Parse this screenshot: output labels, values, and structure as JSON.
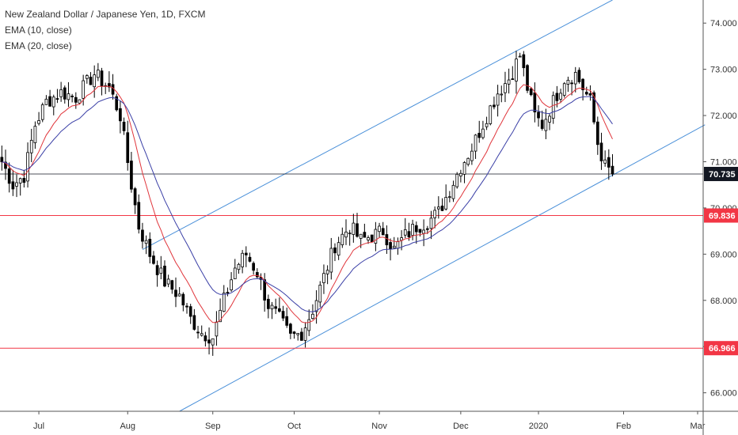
{
  "legend": {
    "title": "New Zealand Dollar / Japanese Yen, 1D, FXCM",
    "ema10": "EMA (10, close)",
    "ema20": "EMA (20, close)"
  },
  "chart_data": {
    "type": "candlestick",
    "ylim": [
      65.6,
      74.5
    ],
    "y_ticks": [
      {
        "value": 66.0,
        "label": "66.000"
      },
      {
        "value": 67.0,
        "label": "67.000"
      },
      {
        "value": 68.0,
        "label": "68.000"
      },
      {
        "value": 69.0,
        "label": "69.000"
      },
      {
        "value": 70.0,
        "label": "70.000"
      },
      {
        "value": 71.0,
        "label": "71.000"
      },
      {
        "value": 72.0,
        "label": "72.000"
      },
      {
        "value": 73.0,
        "label": "73.000"
      },
      {
        "value": 74.0,
        "label": "74.000"
      }
    ],
    "x_ticks": [
      {
        "bar": 10,
        "label": "Jul"
      },
      {
        "bar": 34,
        "label": "Aug"
      },
      {
        "bar": 57,
        "label": "Sep"
      },
      {
        "bar": 79,
        "label": "Oct"
      },
      {
        "bar": 102,
        "label": "Nov"
      },
      {
        "bar": 124,
        "label": "Dec"
      },
      {
        "bar": 145,
        "label": "2020"
      },
      {
        "bar": 168,
        "label": "Feb"
      },
      {
        "bar": 188,
        "label": "Mar"
      }
    ],
    "bar_count": 190,
    "waypoints": [
      [
        0,
        71.0
      ],
      [
        3,
        70.5
      ],
      [
        6,
        70.7
      ],
      [
        9,
        71.8
      ],
      [
        12,
        72.3
      ],
      [
        16,
        72.5
      ],
      [
        20,
        72.4
      ],
      [
        25,
        72.9
      ],
      [
        29,
        72.6
      ],
      [
        32,
        72.0
      ],
      [
        35,
        70.5
      ],
      [
        37,
        69.6
      ],
      [
        40,
        69.0
      ],
      [
        44,
        68.4
      ],
      [
        48,
        68.1
      ],
      [
        51,
        67.6
      ],
      [
        54,
        67.3
      ],
      [
        57,
        67.2
      ],
      [
        60,
        68.0
      ],
      [
        63,
        68.7
      ],
      [
        66,
        69.0
      ],
      [
        69,
        68.6
      ],
      [
        72,
        67.9
      ],
      [
        75,
        67.6
      ],
      [
        78,
        67.2
      ],
      [
        81,
        67.3
      ],
      [
        84,
        67.8
      ],
      [
        87,
        68.5
      ],
      [
        90,
        69.2
      ],
      [
        94,
        69.6
      ],
      [
        97,
        69.3
      ],
      [
        100,
        69.4
      ],
      [
        103,
        69.5
      ],
      [
        106,
        69.1
      ],
      [
        109,
        69.4
      ],
      [
        112,
        69.6
      ],
      [
        115,
        69.7
      ],
      [
        118,
        69.9
      ],
      [
        121,
        70.4
      ],
      [
        124,
        70.9
      ],
      [
        127,
        71.3
      ],
      [
        131,
        72.0
      ],
      [
        134,
        72.5
      ],
      [
        137,
        72.8
      ],
      [
        140,
        73.3
      ],
      [
        142,
        72.6
      ],
      [
        144,
        72.0
      ],
      [
        146,
        71.8
      ],
      [
        149,
        72.3
      ],
      [
        152,
        72.8
      ],
      [
        155,
        72.9
      ],
      [
        157,
        72.6
      ],
      [
        159,
        72.3
      ],
      [
        161,
        71.4
      ],
      [
        163,
        70.9
      ],
      [
        165,
        70.75
      ]
    ],
    "last_close": 70.735,
    "channel": {
      "upper": {
        "from": [
          38,
          69.1
        ],
        "to": [
          165,
          74.5
        ]
      },
      "lower": {
        "from": [
          48,
          65.6
        ],
        "to": [
          190,
          71.8
        ]
      }
    },
    "hlines": [
      {
        "value": 69.836,
        "label": "69.836",
        "color": "#f23645"
      },
      {
        "value": 66.966,
        "label": "66.966",
        "color": "#f23645"
      }
    ],
    "price_line": {
      "value": 70.735,
      "label": "70.735",
      "color": "#131722"
    },
    "colors": {
      "up_candle": "#ffffff",
      "down_candle": "#000000",
      "wick": "#000000",
      "ema10": "#e0353b",
      "ema20": "#3a3fa6",
      "channel": "#4a90d9",
      "axis_line": "#555555"
    }
  }
}
